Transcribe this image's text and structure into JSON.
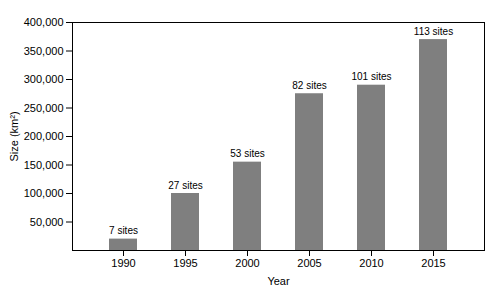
{
  "chart_data": {
    "type": "bar",
    "categories": [
      "1990",
      "1995",
      "2000",
      "2005",
      "2010",
      "2015"
    ],
    "values": [
      20000,
      100000,
      155000,
      275000,
      290000,
      370000
    ],
    "annotations": [
      "7 sites",
      "27 sites",
      "53 sites",
      "82 sites",
      "101 sites",
      "113 sites"
    ],
    "color": "#7f7f7f",
    "xlabel": "Year",
    "ylabel": "Size (km²)",
    "ylim": [
      0,
      400000
    ],
    "yticks": [
      {
        "value": 50000,
        "label": "50,000"
      },
      {
        "value": 100000,
        "label": "100,000"
      },
      {
        "value": 150000,
        "label": "150,000"
      },
      {
        "value": 200000,
        "label": "200,000"
      },
      {
        "value": 250000,
        "label": "250,000"
      },
      {
        "value": 300000,
        "label": "300,000"
      },
      {
        "value": 350000,
        "label": "350,000"
      },
      {
        "value": 400000,
        "label": "400,000"
      }
    ],
    "grid": false
  }
}
